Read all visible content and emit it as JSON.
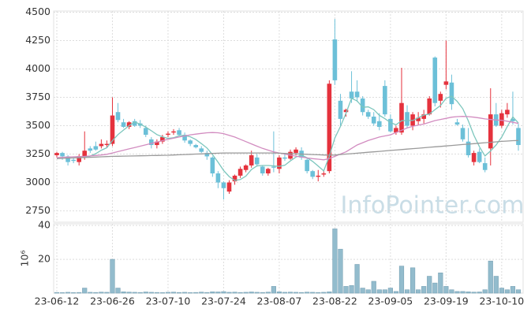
{
  "chart_data": {
    "type": "candlestick",
    "categories": [
      "23-06-12",
      null,
      null,
      null,
      null,
      null,
      null,
      null,
      null,
      null,
      "23-06-26",
      null,
      null,
      null,
      null,
      null,
      null,
      null,
      null,
      null,
      "23-07-10",
      null,
      null,
      null,
      null,
      null,
      null,
      null,
      null,
      null,
      "23-07-24",
      null,
      null,
      null,
      null,
      null,
      null,
      null,
      null,
      null,
      "23-08-07",
      null,
      null,
      null,
      null,
      null,
      null,
      null,
      null,
      null,
      "23-08-22",
      null,
      null,
      null,
      null,
      null,
      null,
      null,
      null,
      null,
      "23-09-05",
      null,
      null,
      null,
      null,
      null,
      null,
      null,
      null,
      null,
      "23-09-19",
      null,
      null,
      null,
      null,
      null,
      null,
      null,
      null,
      null,
      "23-10-10",
      null,
      null,
      null
    ],
    "open": [
      3240,
      3260,
      3230,
      3200,
      3180,
      3220,
      3300,
      3320,
      3320,
      3330,
      3340,
      3620,
      3530,
      3490,
      3540,
      3520,
      3480,
      3380,
      3330,
      3360,
      3420,
      3440,
      3460,
      3420,
      3370,
      3330,
      3300,
      3260,
      3220,
      3080,
      3000,
      2920,
      3010,
      3060,
      3110,
      3150,
      3220,
      3140,
      3080,
      3140,
      3120,
      3220,
      3210,
      3260,
      3280,
      3200,
      3100,
      3050,
      3070,
      3100,
      4260,
      3720,
      3620,
      3800,
      3800,
      3740,
      3620,
      3580,
      3540,
      3850,
      3560,
      3440,
      3440,
      3620,
      3500,
      3540,
      3560,
      3600,
      4100,
      3720,
      3860,
      3880,
      3530,
      3480,
      3360,
      3180,
      3270,
      3170,
      3300,
      3600,
      3500,
      3600,
      3560,
      3480
    ],
    "high": [
      3270,
      3270,
      3240,
      3220,
      3250,
      3450,
      3320,
      3360,
      3380,
      3370,
      3750,
      3700,
      3560,
      3540,
      3560,
      3550,
      3500,
      3400,
      3380,
      3420,
      3450,
      3470,
      3480,
      3440,
      3380,
      3340,
      3320,
      3280,
      3230,
      3100,
      3010,
      3020,
      3070,
      3140,
      3160,
      3280,
      3250,
      3150,
      3130,
      3450,
      3240,
      3260,
      3290,
      3310,
      3310,
      3220,
      3110,
      3110,
      3100,
      3900,
      4440,
      3780,
      3650,
      3980,
      3900,
      3760,
      3640,
      3620,
      3610,
      3900,
      3600,
      3500,
      4010,
      3680,
      3620,
      3620,
      3640,
      3760,
      4110,
      3800,
      4250,
      3950,
      3560,
      3510,
      3480,
      3280,
      3300,
      3220,
      3830,
      3700,
      3640,
      3700,
      3800,
      3520
    ],
    "low": [
      3220,
      3200,
      3150,
      3170,
      3150,
      3200,
      3260,
      3280,
      3300,
      3310,
      3320,
      3530,
      3480,
      3470,
      3490,
      3480,
      3400,
      3300,
      3300,
      3340,
      3400,
      3420,
      3410,
      3350,
      3320,
      3300,
      3260,
      3200,
      3050,
      2950,
      2850,
      2900,
      2980,
      3040,
      3090,
      3130,
      3140,
      3060,
      3060,
      3090,
      3080,
      3190,
      3200,
      3240,
      3200,
      3080,
      3030,
      3010,
      3050,
      3080,
      3860,
      3500,
      3580,
      3700,
      3710,
      3590,
      3560,
      3500,
      3460,
      3580,
      3440,
      3420,
      3420,
      3480,
      3460,
      3510,
      3520,
      3590,
      3670,
      3660,
      3820,
      3640,
      3500,
      3360,
      3220,
      3150,
      3170,
      3090,
      3150,
      3490,
      3480,
      3570,
      3510,
      3280
    ],
    "close": [
      3260,
      3230,
      3180,
      3190,
      3230,
      3280,
      3280,
      3290,
      3340,
      3340,
      3590,
      3550,
      3490,
      3530,
      3500,
      3500,
      3420,
      3330,
      3360,
      3400,
      3430,
      3450,
      3420,
      3370,
      3340,
      3310,
      3270,
      3230,
      3080,
      3000,
      2950,
      3000,
      3060,
      3120,
      3150,
      3240,
      3160,
      3080,
      3120,
      3130,
      3220,
      3210,
      3270,
      3290,
      3220,
      3100,
      3050,
      3060,
      3080,
      3870,
      3900,
      3560,
      3640,
      3740,
      3750,
      3620,
      3580,
      3520,
      3490,
      3600,
      3450,
      3480,
      3700,
      3500,
      3600,
      3570,
      3600,
      3740,
      3700,
      3780,
      3890,
      3690,
      3510,
      3380,
      3240,
      3260,
      3180,
      3110,
      3600,
      3500,
      3610,
      3640,
      3540,
      3330
    ],
    "up_color": "#e5323d",
    "down_color": "#6cc0d8",
    "series": [
      {
        "color": "#7cc6bd",
        "values": [
          null,
          null,
          null,
          null,
          3218,
          3222,
          3232,
          3254,
          3284,
          3306,
          3368,
          3422,
          3462,
          3500,
          3532,
          3514,
          3488,
          3456,
          3422,
          3402,
          3388,
          3394,
          3412,
          3414,
          3402,
          3378,
          3342,
          3304,
          3246,
          3178,
          3106,
          3052,
          3018,
          3026,
          3056,
          3114,
          3146,
          3150,
          3150,
          3146,
          3142,
          3152,
          3190,
          3224,
          3242,
          3218,
          3186,
          3144,
          3102,
          3232,
          3392,
          3494,
          3610,
          3742,
          3718,
          3662,
          3666,
          3642,
          3592,
          3562,
          3528,
          3508,
          3544,
          3546,
          3546,
          3570,
          3594,
          3602,
          3642,
          3678,
          3742,
          3760,
          3714,
          3650,
          3542,
          3416,
          3314,
          3234,
          3278,
          3330,
          3400,
          3492,
          3578,
          3524
        ]
      },
      {
        "color": "#d28cc0",
        "values": [
          3220,
          3222,
          3224,
          3226,
          3228,
          3230,
          3234,
          3238,
          3242,
          3248,
          3260,
          3272,
          3284,
          3296,
          3308,
          3320,
          3332,
          3344,
          3356,
          3368,
          3380,
          3390,
          3400,
          3410,
          3420,
          3426,
          3432,
          3438,
          3440,
          3438,
          3430,
          3415,
          3400,
          3380,
          3360,
          3340,
          3320,
          3300,
          3285,
          3270,
          3260,
          3250,
          3240,
          3232,
          3224,
          3216,
          3210,
          3205,
          3200,
          3210,
          3230,
          3250,
          3270,
          3300,
          3330,
          3350,
          3370,
          3385,
          3400,
          3410,
          3420,
          3440,
          3460,
          3480,
          3495,
          3505,
          3515,
          3530,
          3545,
          3555,
          3565,
          3575,
          3580,
          3582,
          3580,
          3575,
          3568,
          3560,
          3555,
          3550,
          3548,
          3540,
          3530,
          3520
        ]
      },
      {
        "color": "#9a9a9a",
        "values": [
          3210,
          3212,
          3214,
          3216,
          3218,
          3220,
          3222,
          3224,
          3226,
          3228,
          3230,
          3231,
          3232,
          3233,
          3234,
          3235,
          3236,
          3237,
          3238,
          3239,
          3240,
          3242,
          3244,
          3246,
          3248,
          3250,
          3252,
          3254,
          3256,
          3258,
          3260,
          3260,
          3260,
          3260,
          3260,
          3260,
          3260,
          3260,
          3260,
          3260,
          3258,
          3256,
          3254,
          3252,
          3250,
          3248,
          3246,
          3244,
          3242,
          3240,
          3242,
          3246,
          3250,
          3254,
          3258,
          3262,
          3266,
          3270,
          3274,
          3278,
          3282,
          3286,
          3290,
          3294,
          3298,
          3302,
          3306,
          3310,
          3314,
          3318,
          3322,
          3326,
          3330,
          3334,
          3338,
          3342,
          3346,
          3350,
          3354,
          3358,
          3362,
          3365,
          3368,
          3370
        ]
      }
    ],
    "ylim": [
      2650,
      4510
    ],
    "yticks": [
      2750,
      3000,
      3250,
      3500,
      3750,
      4000,
      4250,
      4500
    ],
    "grid": true,
    "watermark": "InfoPointer.com",
    "volume": {
      "type": "bar",
      "color": "#93bccd",
      "unit_label": "10⁶",
      "ylim": [
        0,
        41
      ],
      "yticks": [
        20,
        40
      ],
      "values": [
        0.4,
        0.3,
        0.5,
        0.3,
        0.4,
        3,
        0.5,
        0.4,
        0.6,
        0.5,
        20,
        3,
        0.8,
        0.6,
        0.5,
        0.4,
        0.7,
        0.5,
        0.4,
        0.3,
        0.5,
        0.6,
        0.4,
        0.5,
        0.3,
        0.4,
        0.6,
        0.4,
        0.8,
        0.7,
        0.9,
        0.5,
        0.6,
        0.4,
        0.5,
        0.7,
        0.5,
        0.4,
        0.6,
        4,
        0.8,
        0.5,
        0.6,
        0.5,
        0.4,
        0.6,
        0.5,
        0.4,
        0.5,
        0.8,
        38,
        26,
        4,
        4.5,
        17,
        3,
        2,
        7,
        2,
        2,
        3,
        1,
        16,
        2,
        15,
        2,
        4,
        10,
        6,
        12,
        4,
        2,
        1,
        1,
        0.8,
        0.6,
        0.7,
        2,
        19,
        10,
        3,
        2,
        4,
        2
      ]
    }
  }
}
